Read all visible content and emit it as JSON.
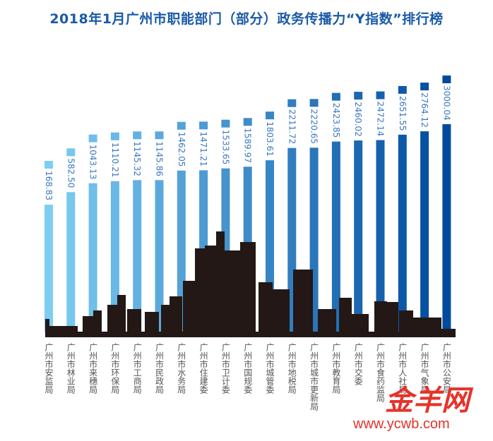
{
  "chart_data": {
    "type": "bar",
    "title": "2018年1月广州市职能部门（部分）政务传播力“Y指数”排行榜",
    "categories": [
      "广州市安监局",
      "广州市林业局",
      "广州市来穗局",
      "广州市环保局",
      "广州市工商局",
      "广州市民政局",
      "广州市水务局",
      "广州市住建委",
      "广州市卫计委",
      "广州市国规委",
      "广州市城管委",
      "广州市地税局",
      "广州市城市更新局",
      "广州市教育局",
      "广州市交委",
      "广州市食药监局",
      "广州市人社局",
      "广州市气象局",
      "广州市公安局"
    ],
    "value_labels": [
      "168.83",
      "582.50",
      "1043.13",
      "1110.21",
      "1145.32",
      "1145.86",
      "1462.05",
      "1471.21",
      "1533.65",
      "1589.97",
      "1803.61",
      "2211.72",
      "2220.65",
      "2423.85",
      "2460.02",
      "2472.14",
      "2651.55",
      "2764.12",
      "3000.04"
    ],
    "values": [
      168.83,
      582.5,
      1043.13,
      1110.21,
      1145.32,
      1145.86,
      1462.05,
      1471.21,
      1533.65,
      1589.97,
      1803.61,
      2211.72,
      2220.65,
      2423.85,
      2460.02,
      2472.14,
      2651.55,
      2764.12,
      3000.04
    ],
    "colors": {
      "low": "#7ecef4",
      "high": "#004a9d",
      "skyline": "#231815",
      "label": "#3a78c2"
    },
    "grid": false
  },
  "logo": {
    "text": "金羊网",
    "url": "www.ycwb.com"
  }
}
